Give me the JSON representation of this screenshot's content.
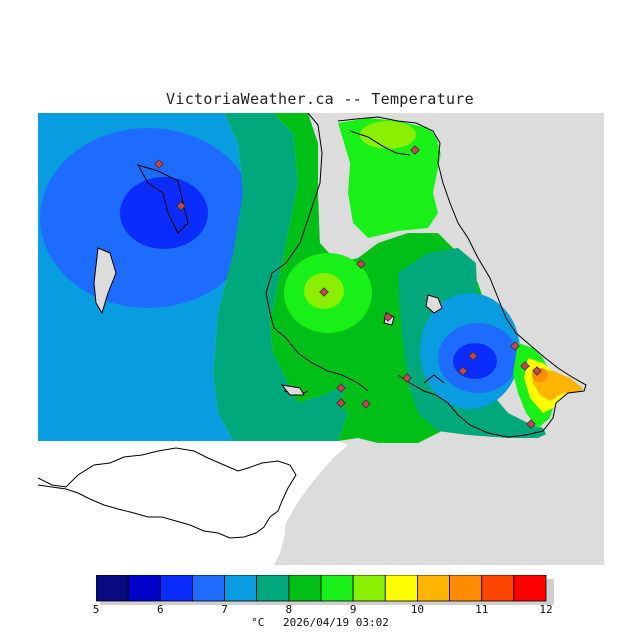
{
  "title": "VictoriaWeather.ca -- Temperature",
  "legend": {
    "ticks": [
      "5",
      "6",
      "7",
      "8",
      "9",
      "10",
      "11",
      "12"
    ],
    "colors": [
      "#0a0a80",
      "#0000c8",
      "#0a2cff",
      "#1e6cff",
      "#0a9ce0",
      "#00a87c",
      "#00c018",
      "#18f018",
      "#88f000",
      "#ffff00",
      "#ffb400",
      "#ff8c00",
      "#ff4600",
      "#ff0000"
    ],
    "unit": "°C",
    "timestamp": "2026/04/19 03:02"
  },
  "colors": {
    "land_gray": "#dcdcdc",
    "coast_line": "#000000",
    "station_marker": "#c8444c"
  },
  "stations_count_note": ""
}
